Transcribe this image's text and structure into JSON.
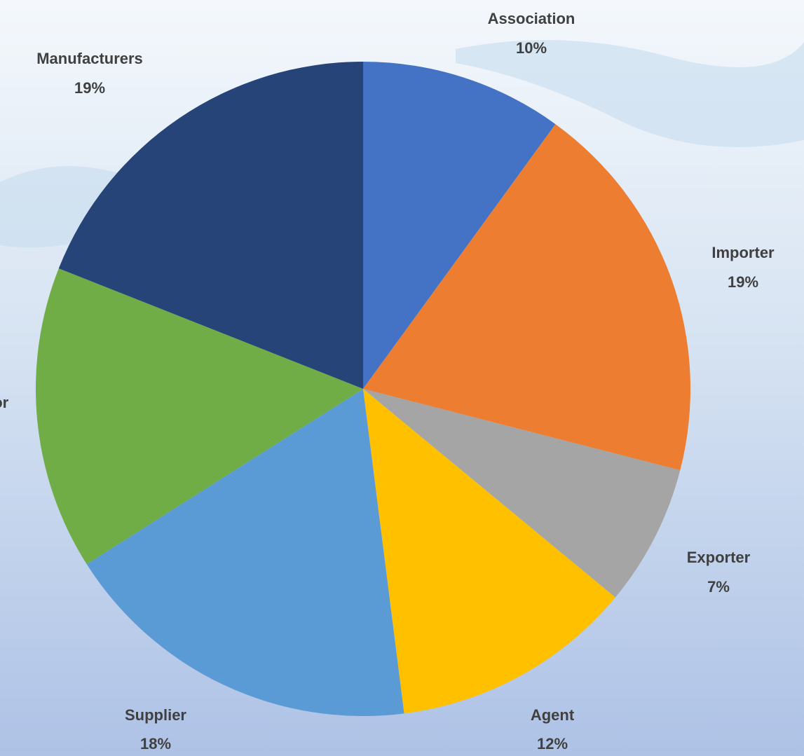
{
  "chart_data": {
    "type": "pie",
    "categories": [
      "Association",
      "Importer",
      "Exporter",
      "Agent",
      "Supplier",
      "Distributor",
      "Manufacturers"
    ],
    "values": [
      10,
      19,
      7,
      12,
      18,
      15,
      19
    ],
    "value_labels": [
      "10%",
      "19%",
      "7%",
      "12%",
      "18%",
      null,
      "19%"
    ],
    "colors": [
      "#4472c4",
      "#ed7d31",
      "#a5a5a5",
      "#ffc000",
      "#5b9bd5",
      "#70ad47",
      "#264478"
    ]
  }
}
